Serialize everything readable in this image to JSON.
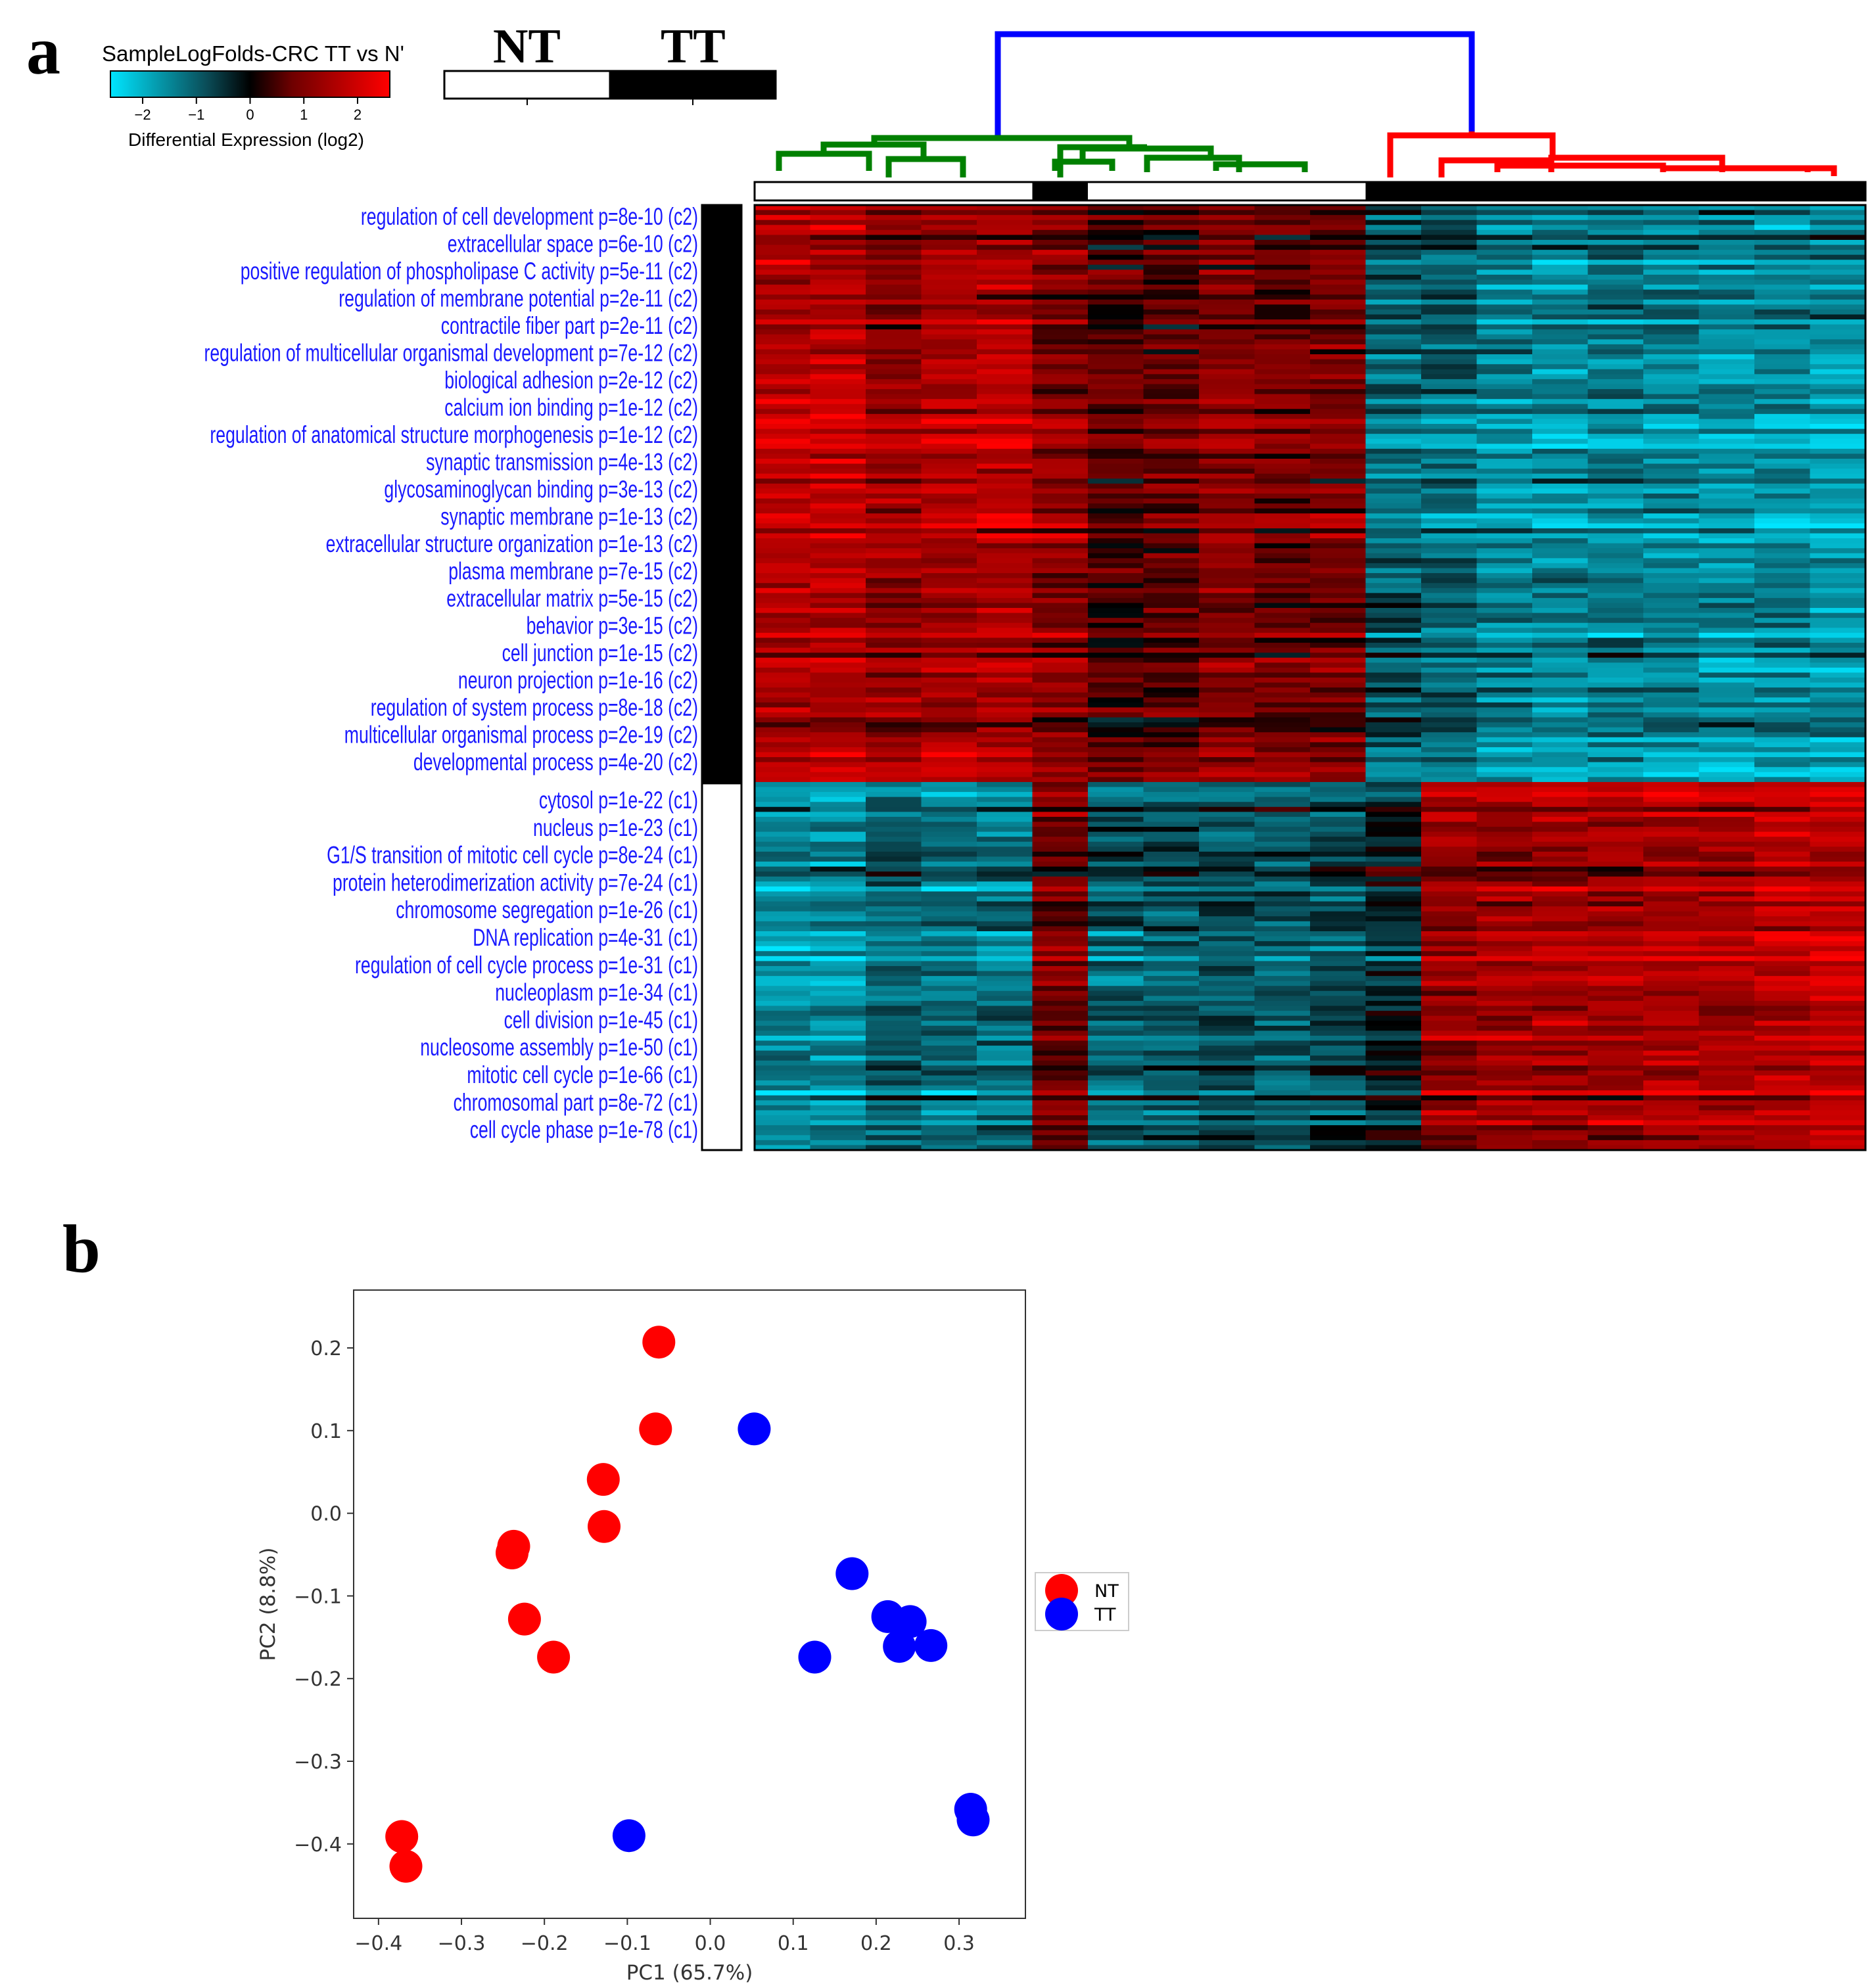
{
  "panel_a": {
    "letter": "a",
    "colorscale": {
      "title": "SampleLogFolds-CRC TT vs Nʹ",
      "ticks": [
        "−2",
        "−1",
        "0",
        "1",
        "2"
      ],
      "tick_values": [
        -2,
        -1,
        0,
        1,
        2
      ],
      "range": [
        -2.6,
        2.6
      ],
      "subtitle": "Differential Expression (log2)",
      "colors": [
        "#00e5ff",
        "#0a4a55",
        "#000000",
        "#6e0000",
        "#ff0000"
      ]
    },
    "group_key": {
      "labels": [
        "NT",
        "TT"
      ],
      "colors": [
        "#ffffff",
        "#000000"
      ]
    },
    "dendrogram_colors": {
      "root": "#0000ff",
      "left": "#008000",
      "right": "#ff0000"
    },
    "sample_groups": [
      "NT",
      "NT",
      "NT",
      "NT",
      "NT",
      "TT",
      "NT",
      "NT",
      "NT",
      "NT",
      "NT",
      "TT",
      "TT",
      "TT",
      "TT",
      "TT",
      "TT",
      "TT",
      "TT",
      "TT"
    ],
    "cluster_colors": {
      "c2": "#000000",
      "c1": "#ffffff"
    },
    "terms_c2": [
      "regulation of cell development p=8e-10 (c2)",
      "extracellular space p=6e-10 (c2)",
      "positive regulation of phospholipase C activity p=5e-11 (c2)",
      "regulation of membrane potential p=2e-11 (c2)",
      "contractile fiber part p=2e-11 (c2)",
      "regulation of multicellular organismal development p=7e-12 (c2)",
      "biological adhesion p=2e-12 (c2)",
      "calcium ion binding p=1e-12 (c2)",
      "regulation of anatomical structure morphogenesis p=1e-12 (c2)",
      "synaptic transmission p=4e-13 (c2)",
      "glycosaminoglycan binding p=3e-13 (c2)",
      "synaptic membrane p=1e-13 (c2)",
      "extracellular structure organization p=1e-13 (c2)",
      "plasma membrane p=7e-15 (c2)",
      "extracellular matrix p=5e-15 (c2)",
      "behavior p=3e-15 (c2)",
      "cell junction p=1e-15 (c2)",
      "neuron projection p=1e-16 (c2)",
      "regulation of system process p=8e-18 (c2)",
      "multicellular organismal process p=2e-19 (c2)",
      "developmental process p=4e-20 (c2)"
    ],
    "terms_c1": [
      "cytosol p=1e-22 (c1)",
      "nucleus p=1e-23 (c1)",
      "G1/S transition of mitotic cell cycle p=8e-24 (c1)",
      "protein heterodimerization activity p=7e-24 (c1)",
      "chromosome segregation p=1e-26 (c1)",
      "DNA replication p=4e-31 (c1)",
      "regulation of cell cycle process p=1e-31 (c1)",
      "nucleoplasm p=1e-34 (c1)",
      "cell division p=1e-45 (c1)",
      "nucleosome assembly p=1e-50 (c1)",
      "mitotic cell cycle p=1e-66 (c1)",
      "chromosomal part p=8e-72 (c1)",
      "cell cycle phase p=1e-78 (c1)"
    ],
    "heatmap_rows": {
      "c2": 116,
      "c1": 74
    }
  },
  "panel_b": {
    "letter": "b",
    "chart_data": {
      "type": "scatter",
      "xlabel": "PC1 (65.7%)",
      "ylabel": "PC2 (8.8%)",
      "xlim": [
        -0.43,
        0.38
      ],
      "ylim": [
        -0.49,
        0.27
      ],
      "xticks": [
        -0.4,
        -0.3,
        -0.2,
        -0.1,
        0.0,
        0.1,
        0.2,
        0.3
      ],
      "xtick_labels": [
        "−0.4",
        "−0.3",
        "−0.2",
        "−0.1",
        "0.0",
        "0.1",
        "0.2",
        "0.3"
      ],
      "yticks": [
        0.2,
        0.1,
        0.0,
        -0.1,
        -0.2,
        -0.3,
        -0.4
      ],
      "ytick_labels": [
        "0.2",
        "0.1",
        "0.0",
        "−0.1",
        "−0.2",
        "−0.3",
        "−0.4"
      ],
      "legend_position": "right",
      "series": [
        {
          "name": "NT",
          "color": "#ff0000",
          "points": [
            {
              "x": -0.062,
              "y": 0.207
            },
            {
              "x": -0.066,
              "y": 0.102
            },
            {
              "x": -0.129,
              "y": 0.041
            },
            {
              "x": -0.128,
              "y": -0.016
            },
            {
              "x": -0.237,
              "y": -0.04
            },
            {
              "x": -0.239,
              "y": -0.048
            },
            {
              "x": -0.224,
              "y": -0.128
            },
            {
              "x": -0.189,
              "y": -0.174
            },
            {
              "x": -0.372,
              "y": -0.391
            },
            {
              "x": -0.367,
              "y": -0.427
            }
          ]
        },
        {
          "name": "TT",
          "color": "#0000ff",
          "points": [
            {
              "x": 0.053,
              "y": 0.102
            },
            {
              "x": 0.171,
              "y": -0.073
            },
            {
              "x": 0.214,
              "y": -0.125
            },
            {
              "x": 0.241,
              "y": -0.131
            },
            {
              "x": 0.228,
              "y": -0.161
            },
            {
              "x": 0.266,
              "y": -0.16
            },
            {
              "x": 0.126,
              "y": -0.174
            },
            {
              "x": -0.098,
              "y": -0.39
            },
            {
              "x": 0.314,
              "y": -0.358
            },
            {
              "x": 0.317,
              "y": -0.371
            }
          ]
        }
      ]
    }
  }
}
